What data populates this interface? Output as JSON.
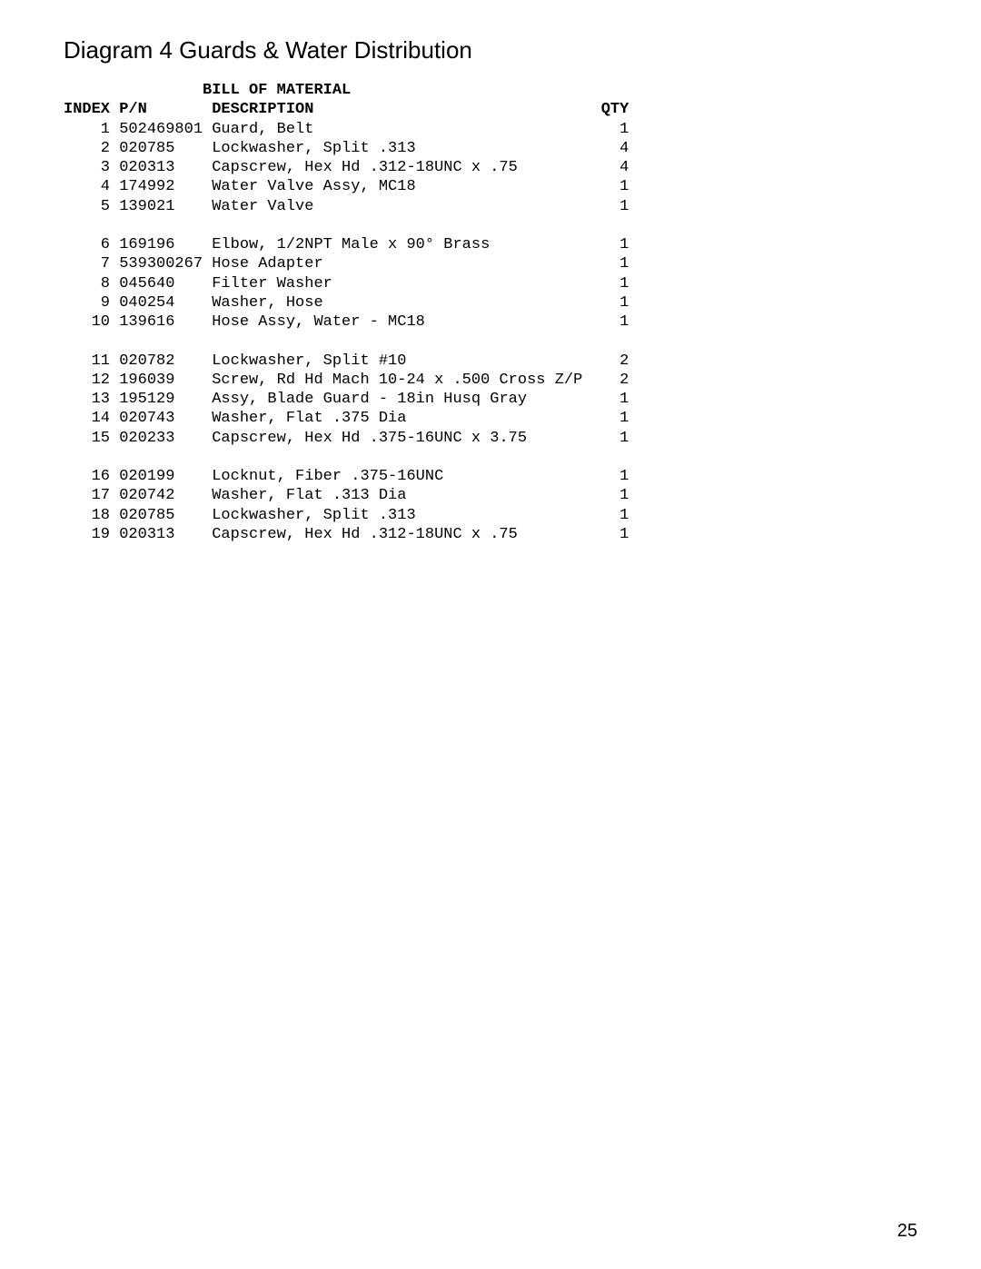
{
  "page_title": "Diagram 4  Guards & Water Distribution",
  "bom_title": "BILL OF MATERIAL",
  "columns": {
    "index": "INDEX",
    "pn": "P/N",
    "description": "DESCRIPTION",
    "qty": "QTY"
  },
  "groups": [
    [
      {
        "index": "1",
        "pn": "502469801",
        "description": "Guard, Belt",
        "qty": "1"
      },
      {
        "index": "2",
        "pn": "020785",
        "description": "Lockwasher, Split .313",
        "qty": "4"
      },
      {
        "index": "3",
        "pn": "020313",
        "description": "Capscrew, Hex Hd .312-18UNC x .75",
        "qty": "4"
      },
      {
        "index": "4",
        "pn": "174992",
        "description": "Water Valve Assy, MC18",
        "qty": "1"
      },
      {
        "index": "5",
        "pn": "139021",
        "description": "Water Valve",
        "qty": "1"
      }
    ],
    [
      {
        "index": "6",
        "pn": "169196",
        "description": "Elbow, 1/2NPT Male x 90° Brass",
        "qty": "1"
      },
      {
        "index": "7",
        "pn": "539300267",
        "description": "Hose Adapter",
        "qty": "1"
      },
      {
        "index": "8",
        "pn": "045640",
        "description": "Filter Washer",
        "qty": "1"
      },
      {
        "index": "9",
        "pn": "040254",
        "description": "Washer, Hose",
        "qty": "1"
      },
      {
        "index": "10",
        "pn": "139616",
        "description": "Hose Assy, Water - MC18",
        "qty": "1"
      }
    ],
    [
      {
        "index": "11",
        "pn": "020782",
        "description": "Lockwasher, Split #10",
        "qty": "2"
      },
      {
        "index": "12",
        "pn": "196039",
        "description": "Screw, Rd Hd Mach 10-24 x .500 Cross Z/P",
        "qty": "2"
      },
      {
        "index": "13",
        "pn": "195129",
        "description": "Assy, Blade Guard - 18in Husq Gray",
        "qty": "1"
      },
      {
        "index": "14",
        "pn": "020743",
        "description": "Washer, Flat .375 Dia",
        "qty": "1"
      },
      {
        "index": "15",
        "pn": "020233",
        "description": "Capscrew, Hex Hd .375-16UNC x 3.75",
        "qty": "1"
      }
    ],
    [
      {
        "index": "16",
        "pn": "020199",
        "description": "Locknut, Fiber .375-16UNC",
        "qty": "1"
      },
      {
        "index": "17",
        "pn": "020742",
        "description": "Washer, Flat .313 Dia",
        "qty": "1"
      },
      {
        "index": "18",
        "pn": "020785",
        "description": "Lockwasher, Split .313",
        "qty": "1"
      },
      {
        "index": "19",
        "pn": "020313",
        "description": "Capscrew, Hex Hd .312-18UNC x .75",
        "qty": "1"
      }
    ]
  ],
  "page_number": "25",
  "layout": {
    "col_index_width": 5,
    "col_pn_width": 10,
    "col_desc_width": 42,
    "col_qty_width": 3,
    "title_indent": 15
  }
}
